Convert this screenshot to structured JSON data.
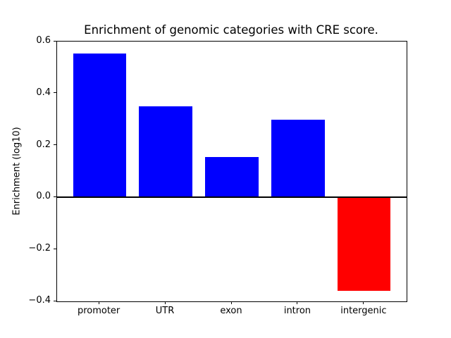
{
  "figure": {
    "background": "#ffffff"
  },
  "chart_data": {
    "type": "bar",
    "title": "Enrichment of genomic categories with CRE score.",
    "xlabel": "",
    "ylabel": "Enrichment (log10)",
    "categories": [
      "promoter",
      "UTR",
      "exon",
      "intron",
      "intergenic"
    ],
    "values": [
      0.555,
      0.35,
      0.155,
      0.3,
      -0.36
    ],
    "bar_colors": [
      "#0000ff",
      "#0000ff",
      "#0000ff",
      "#0000ff",
      "#ff0000"
    ],
    "positive_color": "#0000ff",
    "negative_color": "#ff0000",
    "ylim": [
      -0.4,
      0.6
    ],
    "y_tick_values": [
      0.6,
      0.4,
      0.2,
      0.0,
      -0.2,
      -0.4
    ],
    "y_tick_labels": [
      "0.6",
      "0.4",
      "0.2",
      "0.0",
      "−0.2",
      "−0.4"
    ],
    "bar_width_fraction": 0.8,
    "zero_line": true,
    "grid": false,
    "legend": null,
    "background": "#ffffff"
  }
}
